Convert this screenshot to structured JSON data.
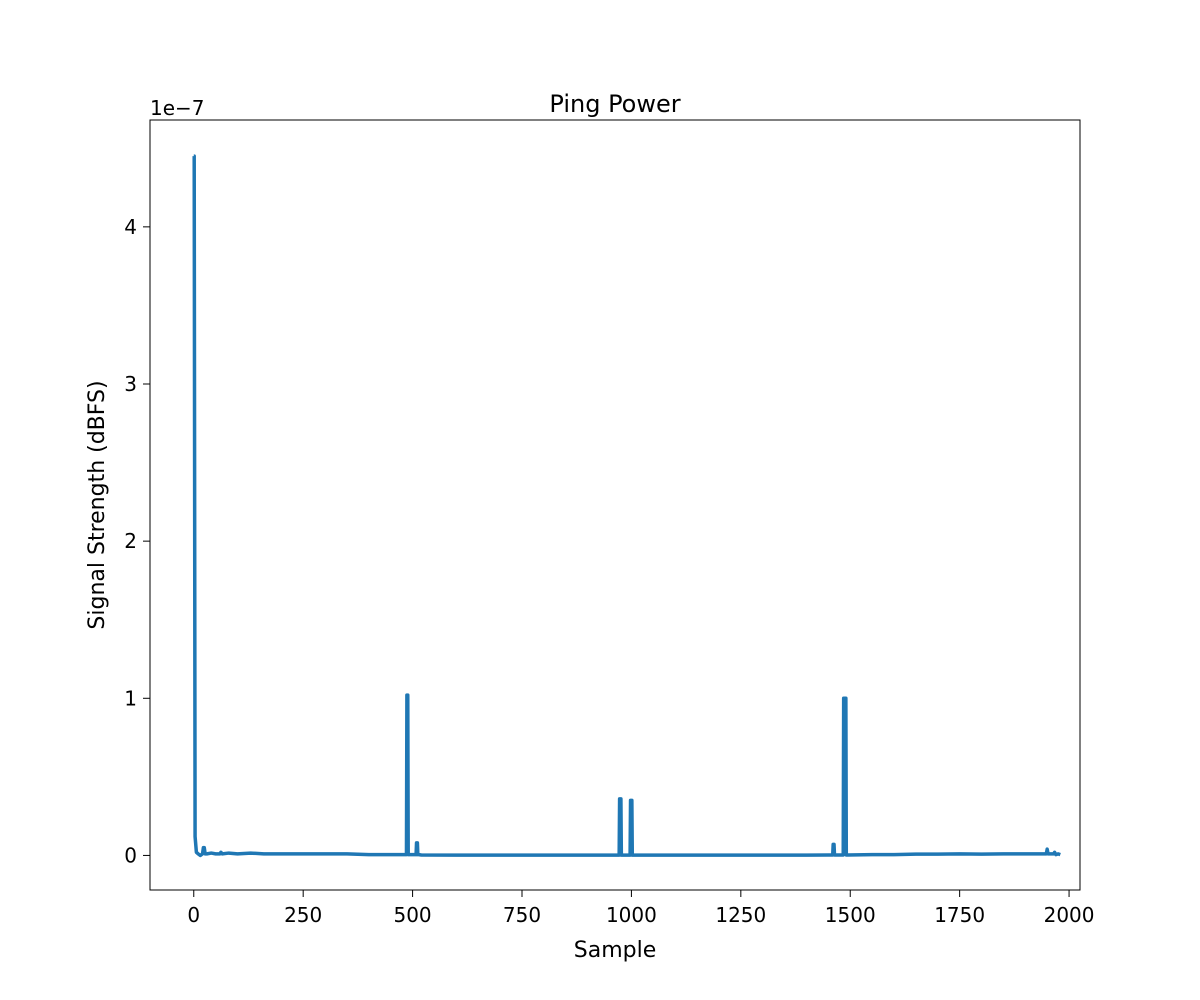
{
  "chart_data": {
    "type": "line",
    "title": "Ping Power",
    "xlabel": "Sample",
    "ylabel": "Signal Strength (dBFS)",
    "y_offset_label": "1e−7",
    "y_scale_factor": 1e-07,
    "xlim": [
      -100,
      2025
    ],
    "ylim": [
      -0.22,
      4.68
    ],
    "x_ticks": [
      0,
      250,
      500,
      750,
      1000,
      1250,
      1500,
      1750,
      2000
    ],
    "x_tick_labels": [
      "0",
      "250",
      "500",
      "750",
      "1000",
      "1250",
      "1500",
      "1750",
      "2000"
    ],
    "y_ticks": [
      0,
      1,
      2,
      3,
      4
    ],
    "y_tick_labels": [
      "0",
      "1",
      "2",
      "3",
      "4"
    ],
    "grid": false,
    "legend": "none",
    "series": [
      {
        "color": "#1f77b4",
        "x": [
          0,
          1,
          3,
          6,
          10,
          15,
          20,
          22,
          24,
          26,
          30,
          40,
          50,
          60,
          62,
          65,
          80,
          100,
          130,
          160,
          200,
          250,
          300,
          350,
          400,
          450,
          480,
          486,
          487,
          489,
          490,
          492,
          500,
          508,
          509,
          511,
          512,
          514,
          520,
          600,
          700,
          800,
          900,
          950,
          972,
          973,
          976,
          977,
          980,
          990,
          997,
          998,
          1001,
          1002,
          1005,
          1050,
          1100,
          1200,
          1300,
          1400,
          1450,
          1460,
          1461,
          1463,
          1464,
          1467,
          1480,
          1484,
          1485,
          1490,
          1491,
          1494,
          1550,
          1600,
          1650,
          1700,
          1750,
          1800,
          1850,
          1900,
          1940,
          1948,
          1950,
          1952,
          1960,
          1965,
          1967,
          1970,
          1975,
          1980
        ],
        "values": [
          4.45,
          4.45,
          0.12,
          0.02,
          0.01,
          0.0,
          0.01,
          0.05,
          0.05,
          0.01,
          0.01,
          0.015,
          0.01,
          0.01,
          0.02,
          0.01,
          0.015,
          0.01,
          0.015,
          0.01,
          0.01,
          0.01,
          0.01,
          0.01,
          0.005,
          0.005,
          0.005,
          0.005,
          1.02,
          1.02,
          0.005,
          0.005,
          0.005,
          0.005,
          0.08,
          0.08,
          0.005,
          0.005,
          0.003,
          0.002,
          0.002,
          0.002,
          0.002,
          0.002,
          0.002,
          0.36,
          0.36,
          0.002,
          0.002,
          0.002,
          0.002,
          0.35,
          0.35,
          0.002,
          0.002,
          0.002,
          0.002,
          0.002,
          0.002,
          0.002,
          0.003,
          0.003,
          0.07,
          0.07,
          0.003,
          0.003,
          0.003,
          0.003,
          1.0,
          1.0,
          0.003,
          0.003,
          0.005,
          0.005,
          0.008,
          0.008,
          0.01,
          0.008,
          0.01,
          0.01,
          0.01,
          0.01,
          0.04,
          0.01,
          0.01,
          0.01,
          0.02,
          0.005,
          0.01,
          0.005
        ]
      }
    ]
  }
}
